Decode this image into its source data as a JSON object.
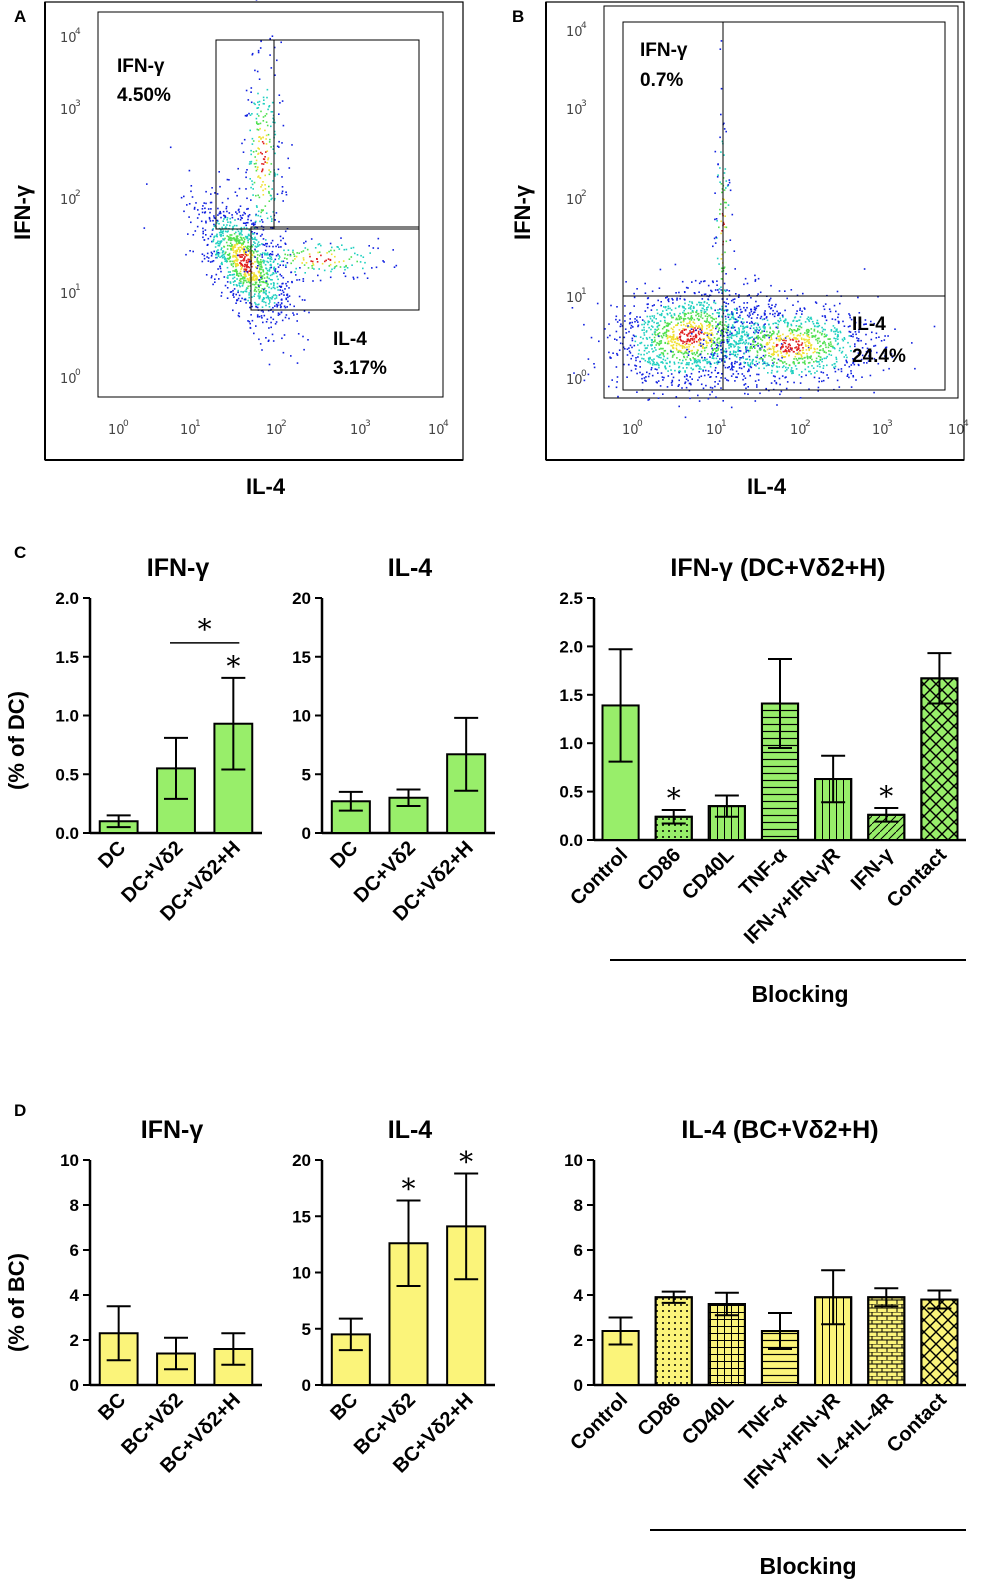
{
  "colors": {
    "green": "#98ee6a",
    "yellow": "#fbf47a",
    "dot_blue": "#1020e0",
    "dot_cyan": "#20d0c0",
    "dot_green": "#50e050",
    "dot_yellow": "#f0e030",
    "dot_red": "#e02020"
  },
  "panels": {
    "A": "A",
    "B": "B",
    "C": "C",
    "D": "D"
  },
  "flow": [
    {
      "x_label": "IL-4",
      "y_label": "IFN-γ",
      "ticks": [
        "10",
        "10",
        "10",
        "10",
        "10"
      ],
      "exps": [
        "0",
        "1",
        "2",
        "3",
        "4"
      ],
      "gate_ifn_label": "IFN-γ",
      "gate_ifn_value": "4.50%",
      "gate_il4_label": "IL-4",
      "gate_il4_value": "3.17%"
    },
    {
      "x_label": "IL-4",
      "y_label": "IFN-γ",
      "ticks": [
        "10",
        "10",
        "10",
        "10",
        "10"
      ],
      "exps": [
        "0",
        "1",
        "2",
        "3",
        "4"
      ],
      "gate_ifn_label": "IFN-γ",
      "gate_ifn_value": "0.7%",
      "gate_il4_label": "IL-4",
      "gate_il4_value": "24.4%"
    }
  ],
  "row_labels": {
    "C_ylabel": "(% of DC)",
    "D_ylabel": "(% of BC)",
    "blocking": "Blocking",
    "star": "*"
  },
  "chart_data": [
    {
      "id": "C1",
      "type": "bar",
      "title": "IFN-γ",
      "color": "green",
      "ylim": [
        0,
        2.0
      ],
      "yticks": [
        "0.0",
        "0.5",
        "1.0",
        "1.5",
        "2.0"
      ],
      "categories": [
        "DC",
        "DC+Vδ2",
        "DC+Vδ2+H"
      ],
      "values": [
        0.1,
        0.55,
        0.93
      ],
      "errors": [
        0.05,
        0.26,
        0.39
      ],
      "patterns": [
        "solid",
        "solid",
        "solid"
      ],
      "stars": [
        2
      ],
      "bracket": [
        1,
        2
      ]
    },
    {
      "id": "C2",
      "type": "bar",
      "title": "IL-4",
      "color": "green",
      "ylim": [
        0,
        20
      ],
      "yticks": [
        "0",
        "5",
        "10",
        "15",
        "20"
      ],
      "categories": [
        "DC",
        "DC+Vδ2",
        "DC+Vδ2+H"
      ],
      "values": [
        2.7,
        3.0,
        6.7
      ],
      "errors": [
        0.8,
        0.7,
        3.1
      ],
      "patterns": [
        "solid",
        "solid",
        "solid"
      ],
      "stars": [],
      "bracket": null
    },
    {
      "id": "C3",
      "type": "bar",
      "title": "IFN-γ (DC+Vδ2+H)",
      "color": "green",
      "ylim": [
        0,
        2.5
      ],
      "yticks": [
        "0.0",
        "0.5",
        "1.0",
        "1.5",
        "2.0",
        "2.5"
      ],
      "categories": [
        "Control",
        "CD86",
        "CD40L",
        "TNF-α",
        "IFN-γ+IFN-γR",
        "IFN-γ",
        "Contact"
      ],
      "values": [
        1.39,
        0.24,
        0.35,
        1.41,
        0.63,
        0.26,
        1.67
      ],
      "errors": [
        0.58,
        0.07,
        0.11,
        0.46,
        0.24,
        0.07,
        0.26
      ],
      "patterns": [
        "solid",
        "dots",
        "vlines",
        "hlines",
        "vlines",
        "diag",
        "crosshatch"
      ],
      "stars": [
        1,
        5
      ],
      "bracket": null
    },
    {
      "id": "D1",
      "type": "bar",
      "title": "IFN-γ",
      "color": "yellow",
      "ylim": [
        0,
        10
      ],
      "yticks": [
        "0",
        "2",
        "4",
        "6",
        "8",
        "10"
      ],
      "categories": [
        "BC",
        "BC+Vδ2",
        "BC+Vδ2+H"
      ],
      "values": [
        2.3,
        1.4,
        1.6
      ],
      "errors": [
        1.2,
        0.7,
        0.7
      ],
      "patterns": [
        "solid",
        "solid",
        "solid"
      ],
      "stars": [],
      "bracket": null
    },
    {
      "id": "D2",
      "type": "bar",
      "title": "IL-4",
      "color": "yellow",
      "ylim": [
        0,
        20
      ],
      "yticks": [
        "0",
        "5",
        "10",
        "15",
        "20"
      ],
      "categories": [
        "BC",
        "BC+Vδ2",
        "BC+Vδ2+H"
      ],
      "values": [
        4.5,
        12.6,
        14.1
      ],
      "errors": [
        1.4,
        3.8,
        4.7
      ],
      "patterns": [
        "solid",
        "solid",
        "solid"
      ],
      "stars": [
        1,
        2
      ],
      "bracket": null
    },
    {
      "id": "D3",
      "type": "bar",
      "title": "IL-4 (BC+Vδ2+H)",
      "color": "yellow",
      "ylim": [
        0,
        10
      ],
      "yticks": [
        "0",
        "2",
        "4",
        "6",
        "8",
        "10"
      ],
      "categories": [
        "Control",
        "CD86",
        "CD40L",
        "TNF-α",
        "IFN-γ+IFN-γR",
        "IL-4+IL-4R",
        "Contact"
      ],
      "values": [
        2.4,
        3.9,
        3.6,
        2.4,
        3.9,
        3.9,
        3.8
      ],
      "errors": [
        0.6,
        0.25,
        0.5,
        0.8,
        1.2,
        0.4,
        0.4
      ],
      "patterns": [
        "solid",
        "dots",
        "grid",
        "hlines",
        "vlines",
        "brick",
        "crosshatch"
      ],
      "stars": [],
      "bracket": null
    }
  ]
}
